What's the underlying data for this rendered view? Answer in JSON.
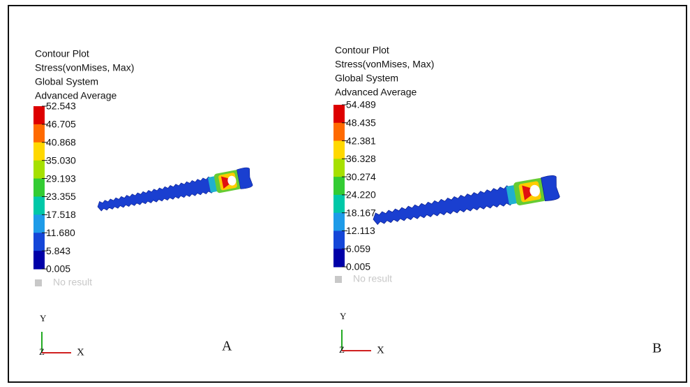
{
  "panels": [
    {
      "header": [
        "Contour Plot",
        "Stress(vonMises, Max)",
        "Global System",
        "Advanced Average"
      ],
      "legend_values": [
        "52.543",
        "46.705",
        "40.868",
        "35.030",
        "29.193",
        "23.355",
        "17.518",
        "11.680",
        "5.843",
        "0.005"
      ],
      "no_result": "No result",
      "axes": {
        "y": "Y",
        "z": "Z",
        "x": "X"
      },
      "label": "A"
    },
    {
      "header": [
        "Contour Plot",
        "Stress(vonMises, Max)",
        "Global System",
        "Advanced Average"
      ],
      "legend_values": [
        "54.489",
        "48.435",
        "42.381",
        "36.328",
        "30.274",
        "24.220",
        "18.167",
        "12.113",
        "6.059",
        "0.005"
      ],
      "no_result": "No result",
      "axes": {
        "y": "Y",
        "z": "Z",
        "x": "X"
      },
      "label": "B"
    }
  ]
}
